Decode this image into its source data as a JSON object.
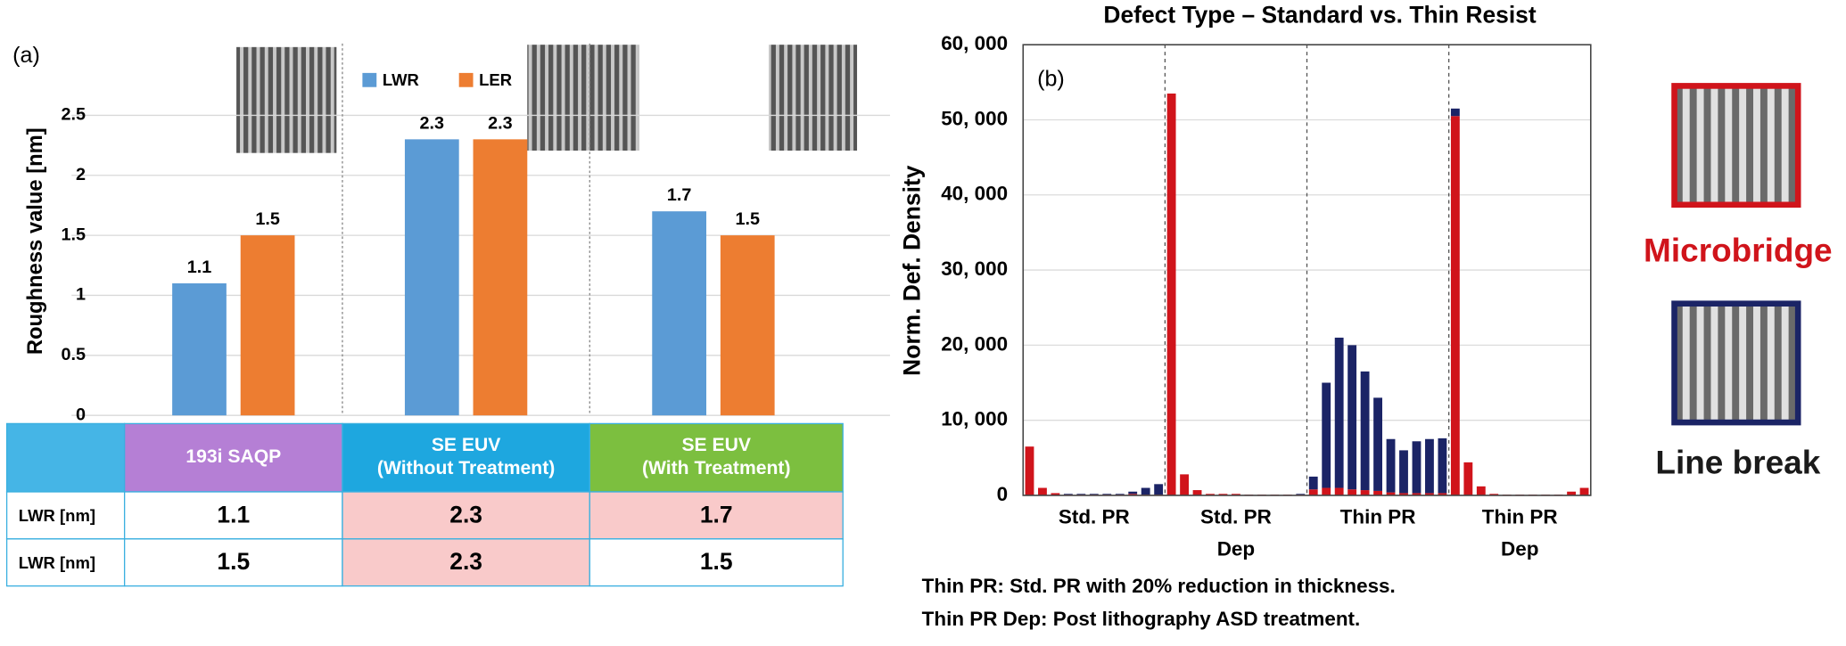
{
  "panel_labels": [
    "(a)",
    "(b)"
  ],
  "chart_data": [
    {
      "type": "bar",
      "y_label": "Roughness value [nm]",
      "categories": [
        "193i SAQP",
        "SE EUV\n(Without Treatment)",
        "SE EUV\n(With Treatment)"
      ],
      "series": [
        {
          "name": "LWR",
          "color": "#5b9bd5",
          "values": [
            1.1,
            2.3,
            1.7
          ]
        },
        {
          "name": "LER",
          "color": "#ed7d31",
          "values": [
            1.5,
            2.3,
            1.5
          ]
        }
      ],
      "ylim": [
        0,
        3
      ],
      "yticks": [
        0,
        0.5,
        1,
        1.5,
        2,
        2.5
      ],
      "grid": true,
      "legend": "top"
    },
    {
      "type": "stacked_bar",
      "title": "Defect Type – Standard vs. Thin Resist",
      "y_label": "Norm. Def. Density",
      "categories": [
        null,
        null,
        null,
        null,
        null,
        null,
        null,
        null,
        null,
        null,
        null,
        null,
        null,
        null,
        null,
        null,
        null,
        null,
        null,
        null,
        null,
        null,
        null,
        null,
        null,
        null,
        null,
        null,
        null,
        null,
        null,
        null,
        null,
        null,
        null,
        null,
        null,
        null,
        null,
        null,
        null,
        null,
        null,
        null
      ],
      "group_labels": [
        "Std. PR",
        "Std. PR\nDep",
        "Thin PR",
        "Thin PR\nDep"
      ],
      "series": [
        {
          "name": "Microbridge",
          "color": "#d0141b",
          "values": [
            6500,
            1000,
            300,
            100,
            100,
            100,
            100,
            100,
            200,
            100,
            100,
            53500,
            2800,
            700,
            200,
            200,
            200,
            100,
            100,
            100,
            100,
            100,
            800,
            1000,
            1000,
            800,
            700,
            600,
            400,
            300,
            300,
            300,
            300,
            50500,
            4400,
            1200,
            200,
            100,
            100,
            100,
            100,
            100,
            500,
            1000
          ]
        },
        {
          "name": "Line break",
          "color": "#1b2466",
          "values": [
            0,
            0,
            0,
            100,
            100,
            100,
            100,
            100,
            300,
            900,
            1400,
            0,
            0,
            0,
            0,
            0,
            0,
            0,
            0,
            0,
            0,
            100,
            1700,
            14000,
            20000,
            19200,
            15800,
            12400,
            7100,
            5700,
            6900,
            7200,
            7300,
            1000,
            0,
            0,
            0,
            0,
            0,
            0,
            0,
            0,
            0,
            0
          ]
        }
      ],
      "ylim": [
        0,
        60000
      ],
      "yticks": [
        0,
        {
          "value": 10000,
          "label": "10, 000"
        },
        {
          "value": 20000,
          "label": "20, 000"
        },
        {
          "value": 30000,
          "label": "30, 000"
        },
        {
          "value": 40000,
          "label": "40, 000"
        },
        {
          "value": 50000,
          "label": "50, 000"
        },
        {
          "value": 60000,
          "label": "60, 000"
        }
      ],
      "grid": true,
      "legend": "right"
    }
  ],
  "table": {
    "rows": [
      {
        "label": "LWR [nm]",
        "cells": [
          "1.1",
          "2.3",
          "1.7"
        ]
      },
      {
        "label": "LWR [nm]",
        "cells": [
          "1.5",
          "2.3",
          "1.5"
        ]
      }
    ]
  },
  "notes": [
    "Thin PR: Std. PR with 20% reduction in thickness.",
    "Thin PR Dep: Post lithography ASD treatment."
  ]
}
